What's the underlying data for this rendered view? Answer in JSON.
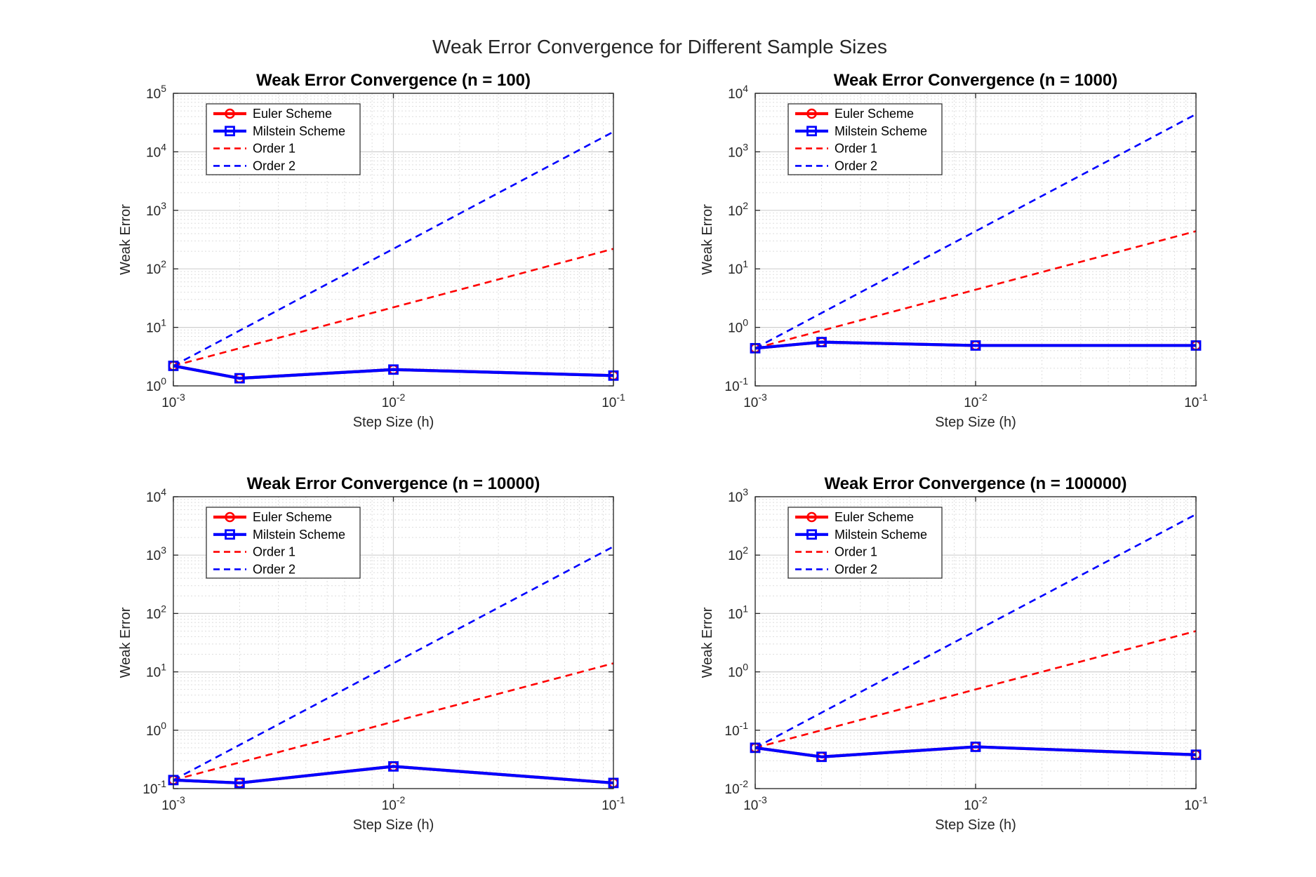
{
  "figure": {
    "suptitle": "Weak Error Convergence for Different Sample Sizes"
  },
  "colors": {
    "euler": "#ff0000",
    "milstein": "#0000ff",
    "order1": "#ff0000",
    "order2": "#0000ff",
    "grid": "#dedede",
    "axis": "#262626"
  },
  "chart_data": [
    {
      "type": "line",
      "title": "Weak Error Convergence (n = 100)",
      "xlabel": "Step Size (h)",
      "ylabel": "Weak Error",
      "xscale": "log",
      "yscale": "log",
      "xlim": [
        0.001,
        0.1
      ],
      "ylim": [
        1,
        100000
      ],
      "xticks": [
        0.001,
        0.01,
        0.1
      ],
      "xtick_labels": [
        {
          "base": "10",
          "exp": "-3"
        },
        {
          "base": "10",
          "exp": "-2"
        },
        {
          "base": "10",
          "exp": "-1"
        }
      ],
      "yticks": [
        1,
        10,
        100,
        1000,
        10000,
        100000
      ],
      "ytick_labels": [
        {
          "base": "10",
          "exp": "0"
        },
        {
          "base": "10",
          "exp": "1"
        },
        {
          "base": "10",
          "exp": "2"
        },
        {
          "base": "10",
          "exp": "3"
        },
        {
          "base": "10",
          "exp": "4"
        },
        {
          "base": "10",
          "exp": "5"
        }
      ],
      "grid": true,
      "legend": "top-left",
      "series": [
        {
          "name": "Euler Scheme",
          "style": "solid",
          "marker": "circle",
          "x": [
            0.001,
            0.002,
            0.01,
            0.1
          ],
          "y": [
            2.2,
            1.35,
            1.9,
            1.5
          ]
        },
        {
          "name": "Milstein Scheme",
          "style": "solid",
          "marker": "square",
          "x": [
            0.001,
            0.002,
            0.01,
            0.1
          ],
          "y": [
            2.2,
            1.35,
            1.9,
            1.5
          ]
        },
        {
          "name": "Order 1",
          "style": "dashed",
          "marker": "none",
          "x": [
            0.001,
            0.1
          ],
          "y": [
            2.2,
            220
          ]
        },
        {
          "name": "Order 2",
          "style": "dashed",
          "marker": "none",
          "x": [
            0.001,
            0.1
          ],
          "y": [
            2.2,
            22000
          ]
        }
      ]
    },
    {
      "type": "line",
      "title": "Weak Error Convergence (n = 1000)",
      "xlabel": "Step Size (h)",
      "ylabel": "Weak Error",
      "xscale": "log",
      "yscale": "log",
      "xlim": [
        0.001,
        0.1
      ],
      "ylim": [
        0.1,
        10000
      ],
      "xticks": [
        0.001,
        0.01,
        0.1
      ],
      "xtick_labels": [
        {
          "base": "10",
          "exp": "-3"
        },
        {
          "base": "10",
          "exp": "-2"
        },
        {
          "base": "10",
          "exp": "-1"
        }
      ],
      "yticks": [
        0.1,
        1,
        10,
        100,
        1000,
        10000
      ],
      "ytick_labels": [
        {
          "base": "10",
          "exp": "-1"
        },
        {
          "base": "10",
          "exp": "0"
        },
        {
          "base": "10",
          "exp": "1"
        },
        {
          "base": "10",
          "exp": "2"
        },
        {
          "base": "10",
          "exp": "3"
        },
        {
          "base": "10",
          "exp": "4"
        }
      ],
      "grid": true,
      "legend": "top-left",
      "series": [
        {
          "name": "Euler Scheme",
          "style": "solid",
          "marker": "circle",
          "x": [
            0.001,
            0.002,
            0.01,
            0.1
          ],
          "y": [
            0.44,
            0.56,
            0.49,
            0.49
          ]
        },
        {
          "name": "Milstein Scheme",
          "style": "solid",
          "marker": "square",
          "x": [
            0.001,
            0.002,
            0.01,
            0.1
          ],
          "y": [
            0.44,
            0.56,
            0.49,
            0.49
          ]
        },
        {
          "name": "Order 1",
          "style": "dashed",
          "marker": "none",
          "x": [
            0.001,
            0.1
          ],
          "y": [
            0.44,
            44
          ]
        },
        {
          "name": "Order 2",
          "style": "dashed",
          "marker": "none",
          "x": [
            0.001,
            0.1
          ],
          "y": [
            0.44,
            4400
          ]
        }
      ]
    },
    {
      "type": "line",
      "title": "Weak Error Convergence (n = 10000)",
      "xlabel": "Step Size (h)",
      "ylabel": "Weak Error",
      "xscale": "log",
      "yscale": "log",
      "xlim": [
        0.001,
        0.1
      ],
      "ylim": [
        0.1,
        10000
      ],
      "xticks": [
        0.001,
        0.01,
        0.1
      ],
      "xtick_labels": [
        {
          "base": "10",
          "exp": "-3"
        },
        {
          "base": "10",
          "exp": "-2"
        },
        {
          "base": "10",
          "exp": "-1"
        }
      ],
      "yticks": [
        0.1,
        1,
        10,
        100,
        1000,
        10000
      ],
      "ytick_labels": [
        {
          "base": "10",
          "exp": "-1"
        },
        {
          "base": "10",
          "exp": "0"
        },
        {
          "base": "10",
          "exp": "1"
        },
        {
          "base": "10",
          "exp": "2"
        },
        {
          "base": "10",
          "exp": "3"
        },
        {
          "base": "10",
          "exp": "4"
        }
      ],
      "grid": true,
      "legend": "top-left",
      "series": [
        {
          "name": "Euler Scheme",
          "style": "solid",
          "marker": "circle",
          "x": [
            0.001,
            0.002,
            0.01,
            0.1
          ],
          "y": [
            0.14,
            0.125,
            0.24,
            0.125
          ]
        },
        {
          "name": "Milstein Scheme",
          "style": "solid",
          "marker": "square",
          "x": [
            0.001,
            0.002,
            0.01,
            0.1
          ],
          "y": [
            0.14,
            0.125,
            0.24,
            0.125
          ]
        },
        {
          "name": "Order 1",
          "style": "dashed",
          "marker": "none",
          "x": [
            0.001,
            0.1
          ],
          "y": [
            0.14,
            14
          ]
        },
        {
          "name": "Order 2",
          "style": "dashed",
          "marker": "none",
          "x": [
            0.001,
            0.1
          ],
          "y": [
            0.14,
            1400
          ]
        }
      ]
    },
    {
      "type": "line",
      "title": "Weak Error Convergence (n = 100000)",
      "xlabel": "Step Size (h)",
      "ylabel": "Weak Error",
      "xscale": "log",
      "yscale": "log",
      "xlim": [
        0.001,
        0.1
      ],
      "ylim": [
        0.01,
        1000
      ],
      "xticks": [
        0.001,
        0.01,
        0.1
      ],
      "xtick_labels": [
        {
          "base": "10",
          "exp": "-3"
        },
        {
          "base": "10",
          "exp": "-2"
        },
        {
          "base": "10",
          "exp": "-1"
        }
      ],
      "yticks": [
        0.01,
        0.1,
        1,
        10,
        100,
        1000
      ],
      "ytick_labels": [
        {
          "base": "10",
          "exp": "-2"
        },
        {
          "base": "10",
          "exp": "-1"
        },
        {
          "base": "10",
          "exp": "0"
        },
        {
          "base": "10",
          "exp": "1"
        },
        {
          "base": "10",
          "exp": "2"
        },
        {
          "base": "10",
          "exp": "3"
        }
      ],
      "grid": true,
      "legend": "top-left",
      "series": [
        {
          "name": "Euler Scheme",
          "style": "solid",
          "marker": "circle",
          "x": [
            0.001,
            0.002,
            0.01,
            0.1
          ],
          "y": [
            0.05,
            0.035,
            0.052,
            0.038
          ]
        },
        {
          "name": "Milstein Scheme",
          "style": "solid",
          "marker": "square",
          "x": [
            0.001,
            0.002,
            0.01,
            0.1
          ],
          "y": [
            0.05,
            0.035,
            0.052,
            0.038
          ]
        },
        {
          "name": "Order 1",
          "style": "dashed",
          "marker": "none",
          "x": [
            0.001,
            0.1
          ],
          "y": [
            0.05,
            5
          ]
        },
        {
          "name": "Order 2",
          "style": "dashed",
          "marker": "none",
          "x": [
            0.001,
            0.1
          ],
          "y": [
            0.05,
            500
          ]
        }
      ]
    }
  ]
}
